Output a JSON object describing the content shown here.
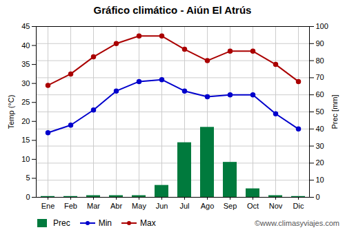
{
  "chart_data": {
    "type": "bar",
    "title": "Gráfico climático - Aiún El Atrús",
    "categories": [
      "Ene",
      "Feb",
      "Mar",
      "Abr",
      "May",
      "Jun",
      "Jul",
      "Ago",
      "Sep",
      "Oct",
      "Nov",
      "Dic"
    ],
    "series": [
      {
        "name": "Prec",
        "type": "bar",
        "axis": "y2",
        "color": "#007a3d",
        "values": [
          0.5,
          0.5,
          1,
          1,
          1,
          7,
          32,
          41,
          20.5,
          5,
          1,
          0.5
        ]
      },
      {
        "name": "Min",
        "type": "line",
        "marker": "circle",
        "color": "#0000cc",
        "values": [
          17,
          19,
          23,
          28,
          30.5,
          31,
          28,
          26.5,
          27,
          27,
          22,
          18
        ]
      },
      {
        "name": "Max",
        "type": "line",
        "marker": "circle",
        "color": "#aa0000",
        "values": [
          29.5,
          32.5,
          37,
          40.5,
          42.5,
          42.5,
          39,
          36,
          38.5,
          38.5,
          35,
          30.5
        ]
      }
    ],
    "ylabel": "Temp (°C)",
    "y2label": "Prec [mm]",
    "ylim": [
      0,
      45
    ],
    "yticks": [
      0,
      5,
      10,
      15,
      20,
      25,
      30,
      35,
      40,
      45
    ],
    "y2lim": [
      0,
      100
    ],
    "y2ticks": [
      0,
      10,
      20,
      30,
      40,
      50,
      60,
      70,
      80,
      90,
      100
    ],
    "grid": true,
    "legend": "bottom",
    "annotations": [
      "©www.climasyviajes.com"
    ]
  }
}
